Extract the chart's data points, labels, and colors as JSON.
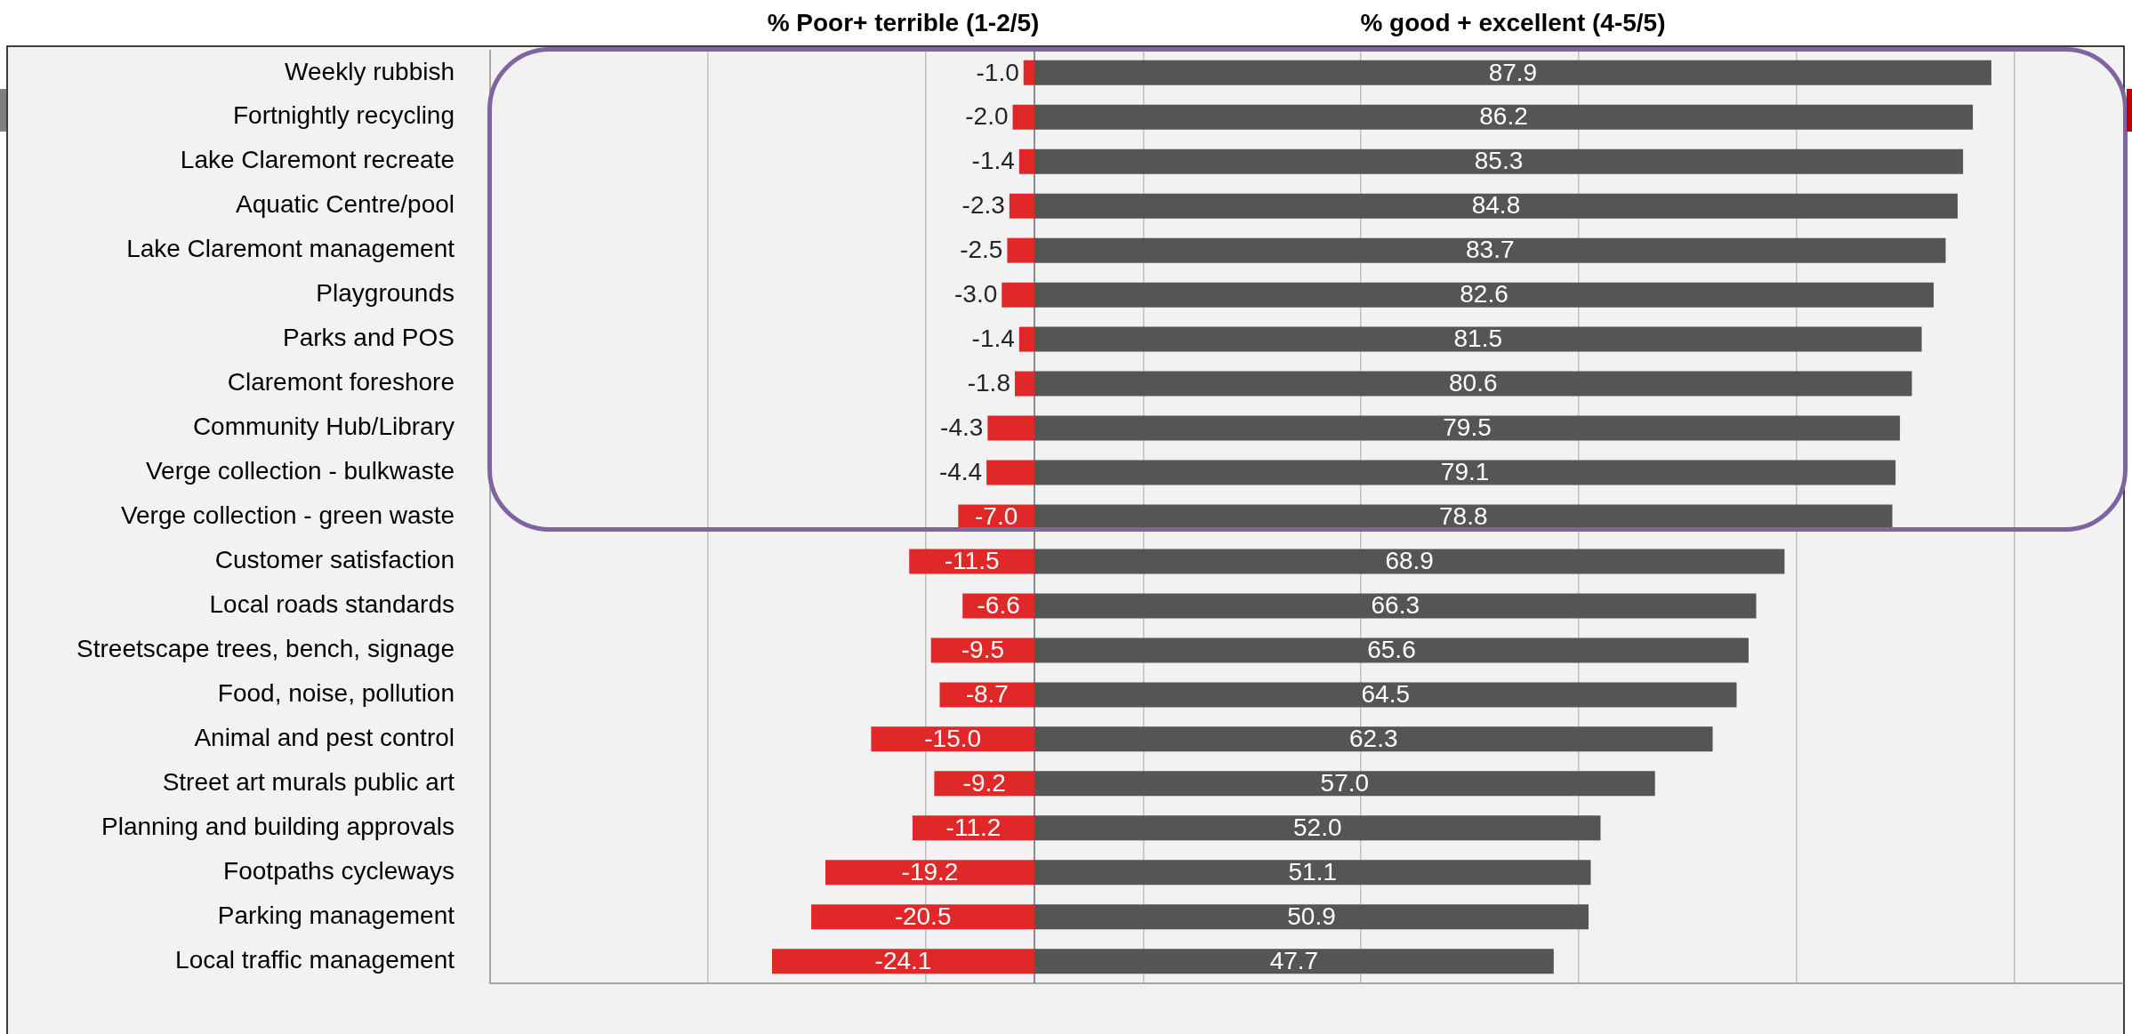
{
  "chart_data": {
    "type": "bar",
    "orientation": "horizontal",
    "stacked": true,
    "categories": [
      "Weekly rubbish",
      "Fortnightly recycling",
      "Lake Claremont recreate",
      "Aquatic Centre/pool",
      "Lake Claremont management",
      "Playgrounds",
      "Parks and POS",
      "Claremont foreshore",
      "Community Hub/Library",
      "Verge collection - bulkwaste",
      "Verge collection - green waste",
      "Customer satisfaction",
      "Local roads standards",
      "Streetscape trees, bench, signage",
      "Food, noise, pollution",
      "Animal and pest control",
      "Street art murals public art",
      "Planning and building approvals",
      "Footpaths cycleways",
      "Parking management",
      "Local traffic management"
    ],
    "series": [
      {
        "name": "% Poor+ terrible (1-2/5)",
        "color": "#e02828",
        "values": [
          -1.0,
          -2.0,
          -1.4,
          -2.3,
          -2.5,
          -3.0,
          -1.4,
          -1.8,
          -4.3,
          -4.4,
          -7.0,
          -11.5,
          -6.6,
          -9.5,
          -8.7,
          -15.0,
          -9.2,
          -11.2,
          -19.2,
          -20.5,
          -24.1
        ],
        "value_labels": [
          "-1.0",
          "-2.0",
          "-1.4",
          "-2.3",
          "-2.5",
          "-3.0",
          "-1.4",
          "-1.8",
          "-4.3",
          "-4.4",
          "-7.0",
          "-11.5",
          "-6.6",
          "-9.5",
          "-8.7",
          "-15.0",
          "-9.2",
          "-11.2",
          "-19.2",
          "-20.5",
          "-24.1"
        ]
      },
      {
        "name": "% good + excellent (4-5/5)",
        "color": "#555555",
        "values": [
          87.9,
          86.2,
          85.3,
          84.8,
          83.7,
          82.6,
          81.5,
          80.6,
          79.5,
          79.1,
          78.8,
          68.9,
          66.3,
          65.6,
          64.5,
          62.3,
          57.0,
          52.0,
          51.1,
          50.9,
          47.7
        ],
        "value_labels": [
          "87.9",
          "86.2",
          "85.3",
          "84.8",
          "83.7",
          "82.6",
          "81.5",
          "80.6",
          "79.5",
          "79.1",
          "78.8",
          "68.9",
          "66.3",
          "65.6",
          "64.5",
          "62.3",
          "57.0",
          "52.0",
          "51.1",
          "50.9",
          "47.7"
        ]
      }
    ],
    "xlim": [
      -50,
      100
    ],
    "xticks": [
      {
        "value": -30,
        "label": null
      },
      {
        "value": -10,
        "label": null
      },
      {
        "value": 10,
        "label": null
      },
      {
        "value": 30,
        "label": null
      },
      {
        "value": 50,
        "label": null
      },
      {
        "value": 70,
        "label": null
      },
      {
        "value": 90,
        "label": null
      }
    ],
    "grid": "x",
    "legend": false,
    "tick_labels": "y"
  }
}
